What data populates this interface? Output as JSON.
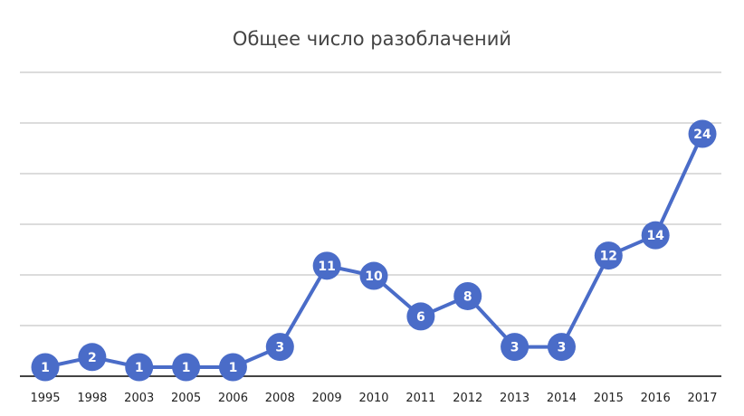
{
  "chart_data": {
    "type": "line",
    "title": "Общее число разоблачений",
    "xlabel": "",
    "ylabel": "",
    "categories": [
      "1995",
      "1998",
      "2003",
      "2005",
      "2006",
      "2008",
      "2009",
      "2010",
      "2011",
      "2012",
      "2013",
      "2014",
      "2015",
      "2016",
      "2017"
    ],
    "series": [
      {
        "values": [
          1,
          2,
          1,
          1,
          1,
          3,
          11,
          10,
          6,
          8,
          3,
          3,
          12,
          14,
          24
        ]
      }
    ],
    "ylim": [
      0,
      25
    ],
    "grid": true,
    "legend": "none",
    "data_labels": true,
    "colors": {
      "line": "#4a6cc8",
      "marker": "#4a6cc8",
      "label_text": "#ffffff",
      "grid": "#b9b9b9",
      "baseline": "#444444",
      "text": "#222222"
    }
  }
}
